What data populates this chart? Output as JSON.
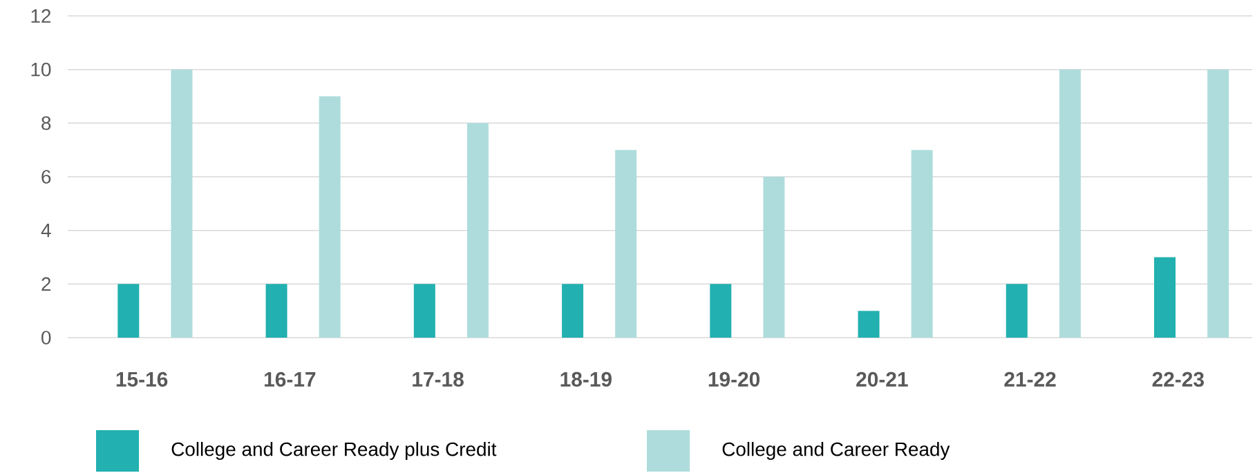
{
  "chart_data": {
    "type": "bar",
    "categories": [
      "15-16",
      "16-17",
      "17-18",
      "18-19",
      "19-20",
      "20-21",
      "21-22",
      "22-23"
    ],
    "series": [
      {
        "name": "College and Career Ready plus Credit",
        "color": "#22b0b0",
        "values": [
          2,
          2,
          2,
          2,
          2,
          1,
          2,
          3
        ]
      },
      {
        "name": "College and Career Ready",
        "color": "#aedcdc",
        "values": [
          10,
          9,
          8,
          7,
          6,
          7,
          10,
          10
        ]
      }
    ],
    "ylim": [
      0,
      12
    ],
    "yticks": [
      0,
      2,
      4,
      6,
      8,
      10,
      12
    ],
    "grid": "y",
    "legend": "bottom"
  }
}
